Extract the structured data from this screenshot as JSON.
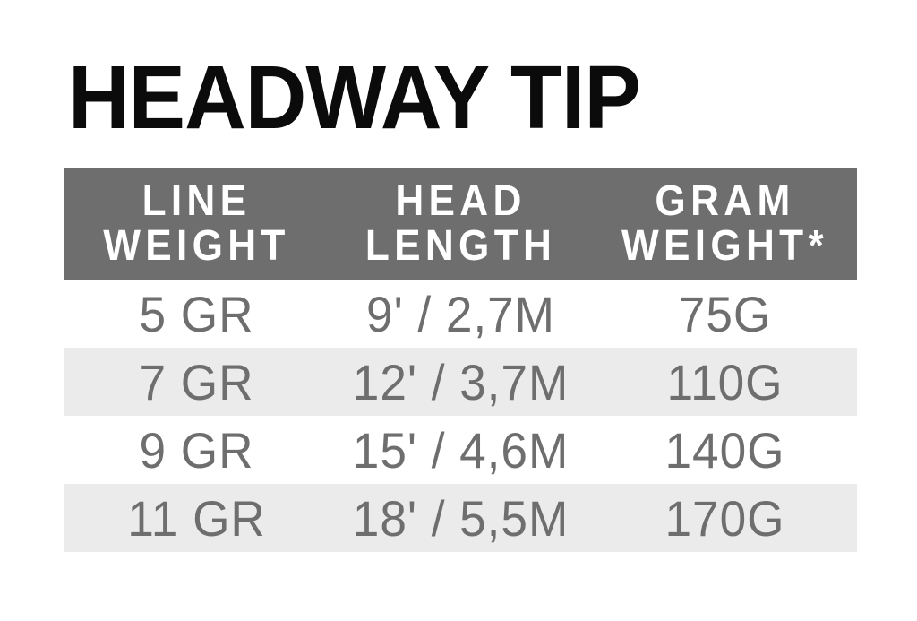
{
  "page": {
    "title": "HEADWAY TIP"
  },
  "table": {
    "headers": [
      {
        "line1": "LINE",
        "line2": "WEIGHT"
      },
      {
        "line1": "HEAD",
        "line2": "LENGTH"
      },
      {
        "line1": "GRAM",
        "line2": "WEIGHT*"
      }
    ],
    "rows": [
      {
        "line_weight": "5 GR",
        "head_length": "9' / 2,7M",
        "gram_weight": "75G"
      },
      {
        "line_weight": "7 GR",
        "head_length": "12' / 3,7M",
        "gram_weight": "110G"
      },
      {
        "line_weight": "9 GR",
        "head_length": "15' / 4,6M",
        "gram_weight": "140G"
      },
      {
        "line_weight": "11 GR",
        "head_length": "18' / 5,5M",
        "gram_weight": "170G"
      }
    ]
  },
  "colors": {
    "header_background": "#6e6e6e",
    "header_text": "#ffffff",
    "stripe_background": "#ebebeb",
    "data_text": "#6e6e6e",
    "title_text": "#0b0b0b",
    "page_background": "#ffffff"
  },
  "chart_data": {
    "type": "table",
    "title": "HEADWAY TIP",
    "columns": [
      "LINE WEIGHT",
      "HEAD LENGTH",
      "GRAM WEIGHT*"
    ],
    "rows": [
      [
        "5 GR",
        "9' / 2,7M",
        "75G"
      ],
      [
        "7 GR",
        "12' / 3,7M",
        "110G"
      ],
      [
        "9 GR",
        "15' / 4,6M",
        "140G"
      ],
      [
        "11 GR",
        "18' / 5,5M",
        "170G"
      ]
    ],
    "layout_hints": {
      "header_style": "gray band, white bold two-line labels",
      "row_striping": "white / light gray alternating starting with white",
      "footnote_marker": "* on GRAM WEIGHT column"
    }
  }
}
